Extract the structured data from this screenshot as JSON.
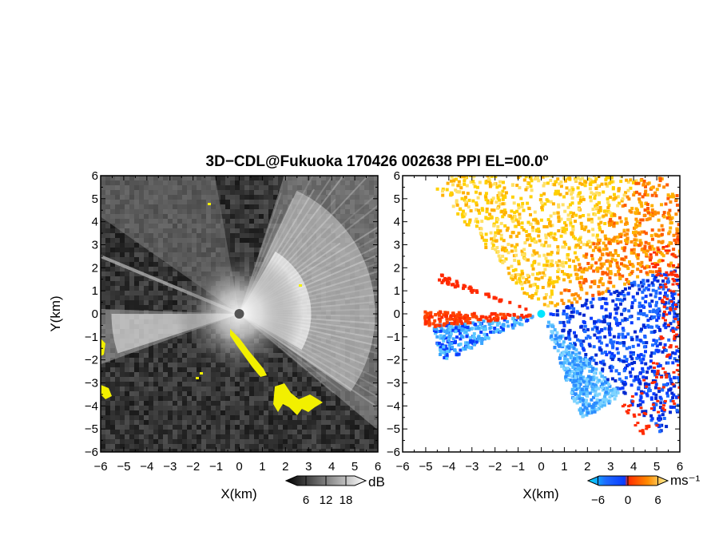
{
  "title": "3D−CDL@Fukuoka 170426 002638 PPI EL=00.0º",
  "chart_data": [
    {
      "type": "heatmap",
      "panel": "left",
      "xlabel": "X(km)",
      "ylabel": "Y(km)",
      "xlim": [
        -6,
        6
      ],
      "ylim": [
        -6,
        6
      ],
      "xticks": [
        "−6",
        "−5",
        "−4",
        "−3",
        "−2",
        "−1",
        "0",
        "1",
        "2",
        "3",
        "4",
        "5",
        "6"
      ],
      "yticks": [
        "6",
        "5",
        "4",
        "3",
        "2",
        "1",
        "0",
        "−1",
        "−2",
        "−3",
        "−4",
        "−5",
        "−6"
      ],
      "colorbar": {
        "unit": "dB",
        "ticks": [
          "6",
          "12",
          "18"
        ],
        "range": [
          0,
          24
        ],
        "colors": [
          "#000000",
          "#ffffff"
        ]
      },
      "colors": {
        "background": "#2a2a2a",
        "echo": "#ffffff",
        "flag": "#f2f000"
      }
    },
    {
      "type": "heatmap",
      "panel": "right",
      "xlabel": "X(km)",
      "xlim": [
        -6,
        6
      ],
      "ylim": [
        -6,
        6
      ],
      "xticks": [
        "−6",
        "−5",
        "−4",
        "−3",
        "−2",
        "−1",
        "0",
        "1",
        "2",
        "3",
        "4",
        "5",
        "6"
      ],
      "yticks": [
        "6",
        "5",
        "4",
        "3",
        "2",
        "1",
        "0",
        "−1",
        "−2",
        "−3",
        "−4",
        "−5",
        "−6"
      ],
      "colorbar": {
        "unit": "ms⁻¹",
        "ticks": [
          "−6",
          "0",
          "6"
        ],
        "range": [
          -8,
          8
        ],
        "colors": [
          "#00e5ff",
          "#0a3cff",
          "#ff2a00",
          "#ffd000",
          "#fff59d"
        ]
      },
      "colors": {
        "background": "#ffffff"
      }
    }
  ]
}
